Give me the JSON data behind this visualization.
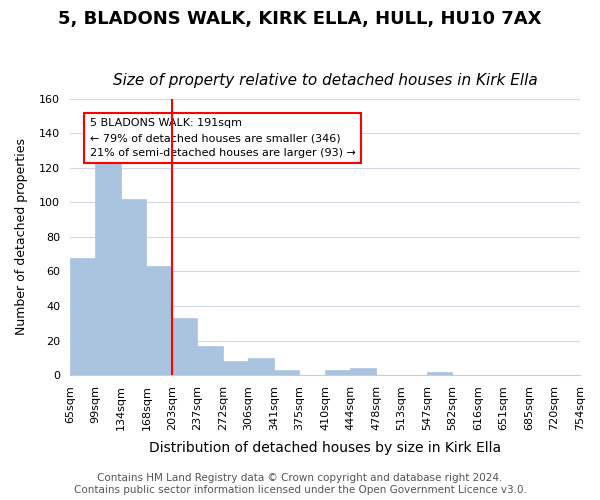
{
  "title": "5, BLADONS WALK, KIRK ELLA, HULL, HU10 7AX",
  "subtitle": "Size of property relative to detached houses in Kirk Ella",
  "xlabel": "Distribution of detached houses by size in Kirk Ella",
  "ylabel": "Number of detached properties",
  "bar_values": [
    68,
    132,
    102,
    63,
    33,
    17,
    8,
    10,
    3,
    0,
    3,
    4,
    0,
    0,
    2,
    0,
    0,
    0,
    0,
    0
  ],
  "tick_labels": [
    "65sqm",
    "99sqm",
    "134sqm",
    "168sqm",
    "203sqm",
    "237sqm",
    "272sqm",
    "306sqm",
    "341sqm",
    "375sqm",
    "410sqm",
    "444sqm",
    "478sqm",
    "513sqm",
    "547sqm",
    "582sqm",
    "616sqm",
    "651sqm",
    "685sqm",
    "720sqm",
    "754sqm"
  ],
  "bar_color": "#aac4e0",
  "bar_edgecolor": "#aac4e0",
  "redline_bin_index": 4,
  "ylim": [
    0,
    160
  ],
  "yticks": [
    0,
    20,
    40,
    60,
    80,
    100,
    120,
    140,
    160
  ],
  "annotation_title": "5 BLADONS WALK: 191sqm",
  "annotation_line1": "← 79% of detached houses are smaller (346)",
  "annotation_line2": "21% of semi-detached houses are larger (93) →",
  "footer1": "Contains HM Land Registry data © Crown copyright and database right 2024.",
  "footer2": "Contains public sector information licensed under the Open Government Licence v3.0.",
  "background_color": "#ffffff",
  "grid_color": "#d0d8e8",
  "title_fontsize": 13,
  "subtitle_fontsize": 11,
  "xlabel_fontsize": 10,
  "ylabel_fontsize": 9,
  "tick_fontsize": 8,
  "footer_fontsize": 7.5
}
